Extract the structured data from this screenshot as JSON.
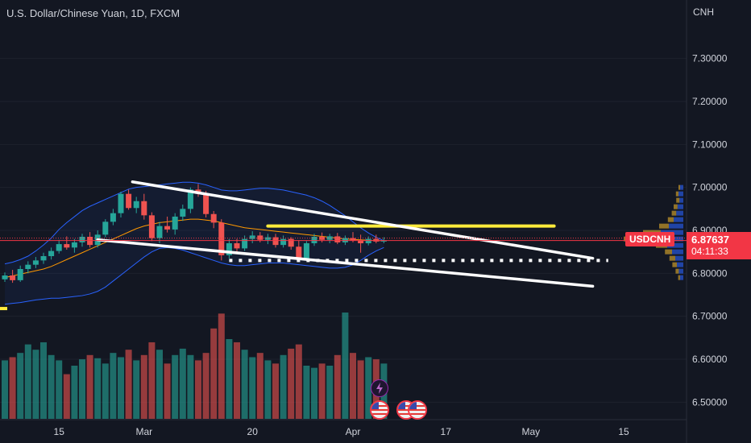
{
  "header": {
    "symbol_name": "U.S. Dollar/Chinese Yuan",
    "interval": "1D",
    "exchange": "FXCM",
    "currency": "CNH"
  },
  "last_price": {
    "symbol": "USDCNH",
    "price": "6.87637",
    "countdown": "04:11:33",
    "value": 6.87637
  },
  "colors": {
    "background": "#131722",
    "up": "#26a69a",
    "down": "#ef5350",
    "price_line": "#f23645",
    "bollinger": "#2962ff",
    "ma": "#ff9800",
    "trendline": "#ffffff",
    "highlight": "#ffeb3b",
    "text": "#d1d4dc"
  },
  "chart_data": {
    "type": "candlestick",
    "y_axis": {
      "min": 6.48,
      "max": 7.38,
      "ticks": [
        "7.30000",
        "7.20000",
        "7.10000",
        "7.00000",
        "6.90000",
        "6.80000",
        "6.70000",
        "6.60000",
        "6.50000"
      ],
      "tick_values": [
        7.3,
        7.2,
        7.1,
        7.0,
        6.9,
        6.8,
        6.7,
        6.6,
        6.5
      ]
    },
    "x_axis": {
      "labels": [
        {
          "label": "15",
          "index": 7
        },
        {
          "label": "Mar",
          "index": 18
        },
        {
          "label": "20",
          "index": 32
        },
        {
          "label": "Apr",
          "index": 45
        },
        {
          "label": "17",
          "index": 57
        },
        {
          "label": "May",
          "index": 68
        },
        {
          "label": "15",
          "index": 80
        }
      ]
    },
    "candles": [
      [
        6.786,
        6.802,
        6.78,
        6.795
      ],
      [
        6.795,
        6.808,
        6.778,
        6.784
      ],
      [
        6.784,
        6.818,
        6.78,
        6.81
      ],
      [
        6.81,
        6.828,
        6.8,
        6.82
      ],
      [
        6.82,
        6.838,
        6.812,
        6.83
      ],
      [
        6.83,
        6.848,
        6.822,
        6.84
      ],
      [
        6.84,
        6.86,
        6.832,
        6.852
      ],
      [
        6.852,
        6.878,
        6.846,
        6.868
      ],
      [
        6.868,
        6.886,
        6.855,
        6.86
      ],
      [
        6.86,
        6.88,
        6.848,
        6.872
      ],
      [
        6.872,
        6.892,
        6.862,
        6.885
      ],
      [
        6.885,
        6.896,
        6.86,
        6.866
      ],
      [
        6.866,
        6.9,
        6.86,
        6.89
      ],
      [
        6.89,
        6.926,
        6.884,
        6.92
      ],
      [
        6.92,
        6.95,
        6.912,
        6.94
      ],
      [
        6.94,
        6.99,
        6.93,
        6.985
      ],
      [
        6.985,
        6.995,
        6.948,
        6.952
      ],
      [
        6.952,
        6.978,
        6.94,
        6.968
      ],
      [
        6.968,
        6.985,
        6.925,
        6.935
      ],
      [
        6.935,
        6.942,
        6.875,
        6.882
      ],
      [
        6.882,
        6.92,
        6.87,
        6.91
      ],
      [
        6.91,
        6.932,
        6.895,
        6.902
      ],
      [
        6.902,
        6.94,
        6.89,
        6.932
      ],
      [
        6.932,
        6.96,
        6.922,
        6.95
      ],
      [
        6.95,
        7.0,
        6.94,
        6.995
      ],
      [
        6.995,
        7.008,
        6.978,
        6.985
      ],
      [
        6.985,
        6.992,
        6.93,
        6.938
      ],
      [
        6.938,
        6.945,
        6.905,
        6.918
      ],
      [
        6.918,
        6.926,
        6.83,
        6.842
      ],
      [
        6.842,
        6.88,
        6.834,
        6.87
      ],
      [
        6.87,
        6.88,
        6.85,
        6.858
      ],
      [
        6.858,
        6.888,
        6.852,
        6.88
      ],
      [
        6.88,
        6.898,
        6.87,
        6.888
      ],
      [
        6.888,
        6.896,
        6.872,
        6.878
      ],
      [
        6.878,
        6.892,
        6.868,
        6.884
      ],
      [
        6.884,
        6.892,
        6.86,
        6.866
      ],
      [
        6.866,
        6.888,
        6.86,
        6.88
      ],
      [
        6.88,
        6.884,
        6.855,
        6.862
      ],
      [
        6.862,
        6.876,
        6.828,
        6.834
      ],
      [
        6.834,
        6.875,
        6.83,
        6.87
      ],
      [
        6.87,
        6.892,
        6.864,
        6.885
      ],
      [
        6.885,
        6.895,
        6.872,
        6.878
      ],
      [
        6.878,
        6.892,
        6.87,
        6.886
      ],
      [
        6.886,
        6.894,
        6.868,
        6.872
      ],
      [
        6.872,
        6.888,
        6.866,
        6.882
      ],
      [
        6.882,
        6.896,
        6.872,
        6.876
      ],
      [
        6.876,
        6.89,
        6.848,
        6.87
      ],
      [
        6.87,
        6.886,
        6.865,
        6.88
      ],
      [
        6.88,
        6.89,
        6.87,
        6.874
      ],
      [
        6.874,
        6.884,
        6.87,
        6.87637
      ]
    ],
    "volume_up": [
      true,
      false,
      true,
      true,
      true,
      true,
      true,
      true,
      false,
      true,
      true,
      false,
      true,
      true,
      true,
      true,
      false,
      true,
      false,
      false,
      true,
      false,
      true,
      true,
      true,
      false,
      false,
      false,
      false,
      true,
      false,
      true,
      true,
      false,
      true,
      false,
      true,
      false,
      false,
      true,
      true,
      false,
      true,
      false,
      true,
      false,
      false,
      true,
      false,
      true
    ],
    "volumes": [
      0.55,
      0.58,
      0.62,
      0.7,
      0.65,
      0.72,
      0.6,
      0.55,
      0.42,
      0.5,
      0.56,
      0.6,
      0.57,
      0.52,
      0.62,
      0.58,
      0.65,
      0.55,
      0.6,
      0.72,
      0.65,
      0.52,
      0.6,
      0.66,
      0.6,
      0.55,
      0.62,
      0.85,
      0.99,
      0.75,
      0.72,
      0.65,
      0.58,
      0.62,
      0.55,
      0.52,
      0.6,
      0.66,
      0.7,
      0.5,
      0.48,
      0.52,
      0.5,
      0.6,
      1.0,
      0.62,
      0.55,
      0.58,
      0.56,
      0.52
    ],
    "bollinger_upper": [
      6.822,
      6.826,
      6.832,
      6.84,
      6.852,
      6.866,
      6.882,
      6.902,
      6.918,
      6.932,
      6.946,
      6.956,
      6.964,
      6.972,
      6.98,
      6.988,
      6.996,
      7.0,
      7.002,
      7.004,
      7.006,
      7.008,
      7.01,
      7.012,
      7.012,
      7.01,
      7.006,
      7.0,
      6.994,
      6.992,
      6.992,
      6.994,
      6.996,
      6.998,
      6.998,
      6.996,
      6.994,
      6.99,
      6.986,
      6.982,
      6.976,
      6.968,
      6.958,
      6.946,
      6.934,
      6.92,
      6.906,
      6.894,
      6.884,
      6.876
    ],
    "bollinger_lower": [
      6.728,
      6.73,
      6.732,
      6.735,
      6.738,
      6.74,
      6.742,
      6.742,
      6.744,
      6.746,
      6.748,
      6.752,
      6.758,
      6.768,
      6.782,
      6.796,
      6.81,
      6.824,
      6.838,
      6.85,
      6.858,
      6.86,
      6.858,
      6.854,
      6.848,
      6.842,
      6.836,
      6.83,
      6.824,
      6.82,
      6.818,
      6.818,
      6.82,
      6.822,
      6.824,
      6.824,
      6.824,
      6.822,
      6.82,
      6.818,
      6.816,
      6.814,
      6.812,
      6.812,
      6.814,
      6.82,
      6.83,
      6.842,
      6.852,
      6.86
    ],
    "moving_average": [
      6.79,
      6.794,
      6.798,
      6.802,
      6.806,
      6.81,
      6.816,
      6.824,
      6.832,
      6.84,
      6.848,
      6.856,
      6.864,
      6.872,
      6.88,
      6.888,
      6.896,
      6.904,
      6.91,
      6.914,
      6.918,
      6.92,
      6.922,
      6.924,
      6.926,
      6.926,
      6.924,
      6.922,
      6.918,
      6.914,
      6.91,
      6.906,
      6.904,
      6.902,
      6.9,
      6.898,
      6.896,
      6.894,
      6.892,
      6.89,
      6.888,
      6.886,
      6.884,
      6.882,
      6.88,
      6.879,
      6.878,
      6.877,
      6.876,
      6.876
    ],
    "drawings": {
      "upper_trendline": [
        [
          16.5,
          7.013
        ],
        [
          76,
          6.835
        ]
      ],
      "lower_trendline": [
        [
          12,
          6.878
        ],
        [
          76,
          6.77
        ]
      ],
      "horizontal_yellow": [
        [
          34,
          6.91
        ],
        [
          71,
          6.91
        ]
      ],
      "dotted_support": [
        [
          29,
          6.83
        ],
        [
          78,
          6.83
        ]
      ]
    },
    "volume_profile": [
      {
        "price": 7.0,
        "up": 0.1,
        "down": 0.05
      },
      {
        "price": 6.985,
        "up": 0.15,
        "down": 0.08
      },
      {
        "price": 6.97,
        "up": 0.12,
        "down": 0.1
      },
      {
        "price": 6.955,
        "up": 0.18,
        "down": 0.12
      },
      {
        "price": 6.94,
        "up": 0.22,
        "down": 0.14
      },
      {
        "price": 6.925,
        "up": 0.3,
        "down": 0.18
      },
      {
        "price": 6.91,
        "up": 0.45,
        "down": 0.3
      },
      {
        "price": 6.895,
        "up": 0.7,
        "down": 0.55
      },
      {
        "price": 6.88,
        "up": 1.0,
        "down": 0.85
      },
      {
        "price": 6.865,
        "up": 0.5,
        "down": 0.35
      },
      {
        "price": 6.85,
        "up": 0.35,
        "down": 0.22
      },
      {
        "price": 6.835,
        "up": 0.25,
        "down": 0.18
      },
      {
        "price": 6.82,
        "up": 0.2,
        "down": 0.14
      },
      {
        "price": 6.805,
        "up": 0.14,
        "down": 0.1
      },
      {
        "price": 6.79,
        "up": 0.1,
        "down": 0.06
      }
    ]
  }
}
